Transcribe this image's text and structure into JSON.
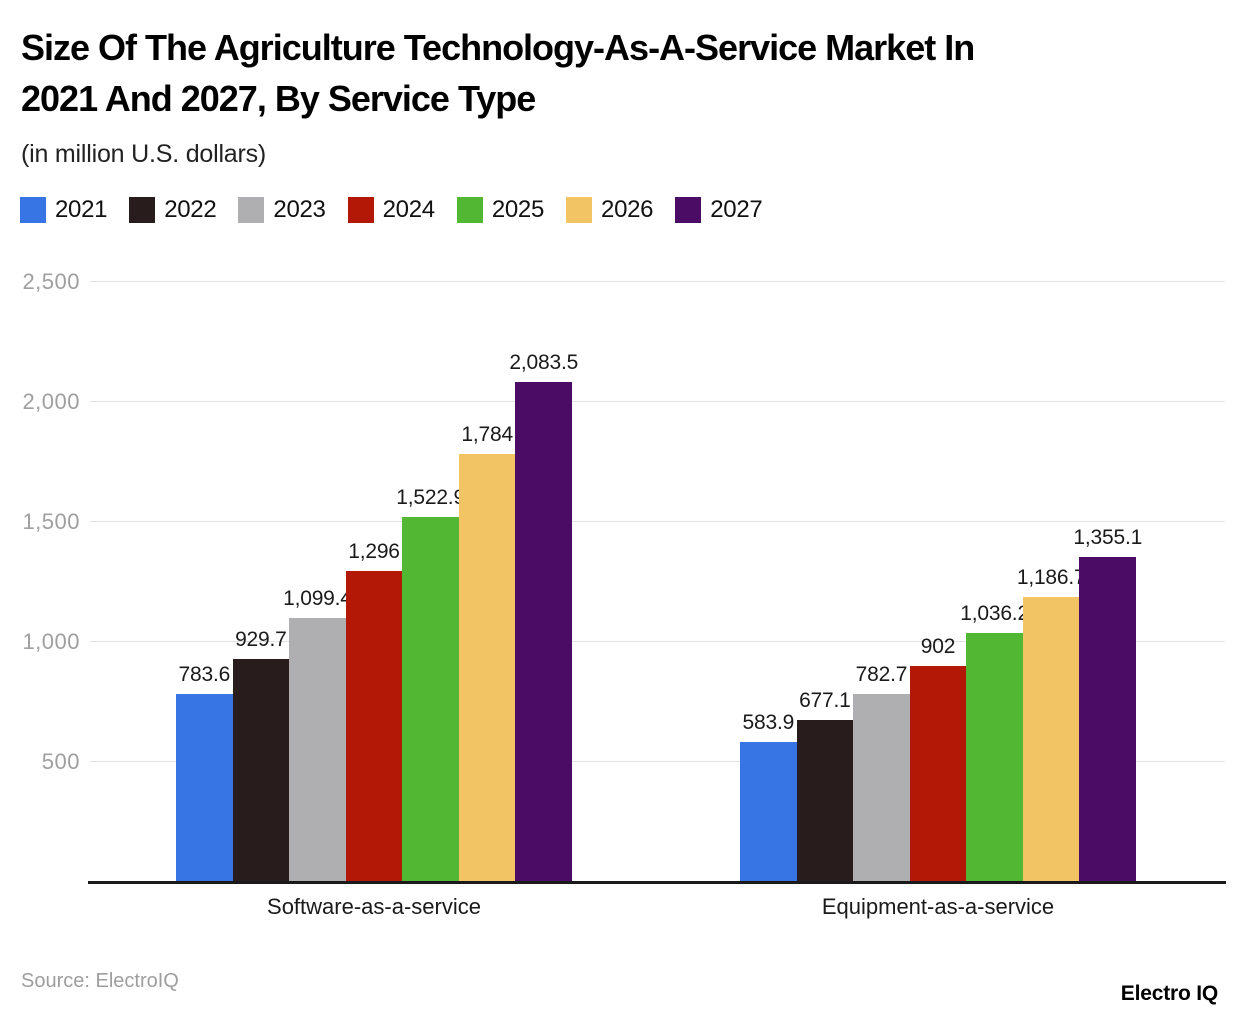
{
  "header": {
    "title_lines": [
      "Size Of The Agriculture Technology-As-A-Service Market In",
      "2021 And 2027, By Service Type"
    ],
    "title_full": "Size Of The Agriculture Technology-As-A-Service Market In 2021 And 2027, By Service Type",
    "subtitle": "(in million U.S. dollars)"
  },
  "footer": {
    "source": "Source: ElectroIQ",
    "brand": "Electro IQ"
  },
  "chart_data": {
    "type": "bar",
    "title": "Size Of The Agriculture Technology-As-A-Service Market In 2021 And 2027, By Service Type",
    "subtitle": "(in million U.S. dollars)",
    "unit": "million U.S. dollars",
    "categories": [
      "Software-as-a-service",
      "Equipment-as-a-service"
    ],
    "series": [
      {
        "name": "2021",
        "color": "#3775e5",
        "values": [
          783.6,
          583.9
        ],
        "labels": [
          "783.6",
          "583.9"
        ]
      },
      {
        "name": "2022",
        "color": "#281d1c",
        "values": [
          929.7,
          677.1
        ],
        "labels": [
          "929.7",
          "677.1"
        ]
      },
      {
        "name": "2023",
        "color": "#afafb1",
        "values": [
          1099.4,
          782.7
        ],
        "labels": [
          "1,099.4",
          "782.7"
        ]
      },
      {
        "name": "2024",
        "color": "#b31806",
        "values": [
          1296,
          902
        ],
        "labels": [
          "1,296",
          "902"
        ]
      },
      {
        "name": "2025",
        "color": "#52b733",
        "values": [
          1522.9,
          1036.2
        ],
        "labels": [
          "1,522.9",
          "1,036.2"
        ]
      },
      {
        "name": "2026",
        "color": "#f2c464",
        "values": [
          1784,
          1186.7
        ],
        "labels": [
          "1,784",
          "1,186.7"
        ]
      },
      {
        "name": "2027",
        "color": "#4b0c66",
        "values": [
          2083.5,
          1355.1
        ],
        "labels": [
          "2,083.5",
          "1,355.1"
        ]
      }
    ],
    "y_axis": {
      "min": 0,
      "max": 2500,
      "ticks": [
        500,
        1000,
        1500,
        2000,
        2500
      ],
      "tick_labels": [
        "500",
        "1,000",
        "1,500",
        "2,000",
        "2,500"
      ]
    },
    "legend_position": "top-left",
    "grid": true,
    "theme": {
      "grid_color": "#e2e2e2",
      "axis_color": "#1a1a1a",
      "tick_label_color": "#a0a0a0",
      "value_label_color": "#1a1a1a"
    }
  }
}
